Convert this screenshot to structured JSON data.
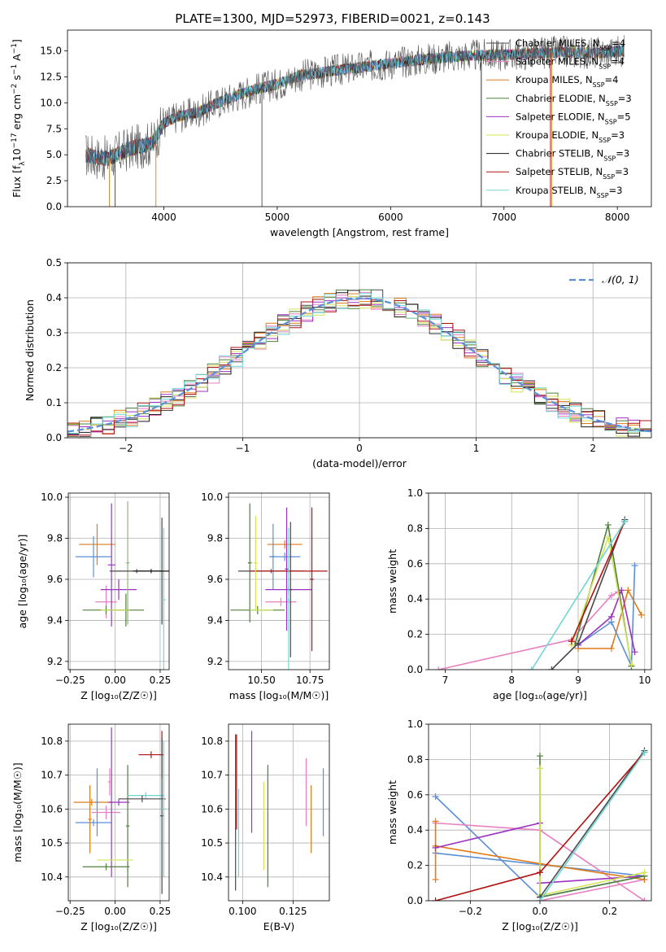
{
  "title": "PLATE=1300, MJD=52973, FIBERID=0021, z=0.143",
  "colors": {
    "series": [
      "#4a4a4a",
      "#e87fc0",
      "#e07b1a",
      "#4f7f3c",
      "#9b32c2",
      "#d4e35a",
      "#1a1a1a",
      "#b01313",
      "#6fd6d6",
      "#5b8fd6",
      "#8fb573",
      "#c3a3e0"
    ]
  },
  "chart_data": [
    {
      "id": "spectrum",
      "type": "line",
      "xlabel": "wavelength [Angstrom, rest frame]",
      "ylabel_parts": [
        "Flux [f",
        "λ",
        "10",
        "−17",
        " erg cm",
        "−2",
        " s",
        "−1",
        " A",
        "−1",
        "]"
      ],
      "xlim": [
        3150,
        8300
      ],
      "ylim": [
        0,
        17
      ],
      "xticks": [
        4000,
        5000,
        6000,
        7000,
        8000
      ],
      "yticks": [
        0.0,
        2.5,
        5.0,
        7.5,
        10.0,
        12.5,
        15.0
      ],
      "ytick_labels": [
        "0.0",
        "2.5",
        "5.0",
        "7.5",
        "10.0",
        "12.5",
        "15.0"
      ],
      "continuum_x": [
        3300,
        3500,
        3700,
        3900,
        4000,
        4100,
        4300,
        4500,
        4800,
        5000,
        5200,
        5500,
        5800,
        6000,
        6300,
        6600,
        6900,
        7200,
        7500,
        7800,
        8050
      ],
      "continuum_y": [
        5.0,
        4.6,
        5.6,
        6.1,
        8.0,
        8.6,
        9.1,
        10.1,
        11.3,
        11.8,
        12.6,
        13.1,
        13.5,
        13.8,
        14.2,
        14.5,
        14.6,
        14.7,
        14.9,
        14.8,
        15.0
      ],
      "legend_entries": [
        {
          "label_main": "Chabrier MILES, N",
          "label_sub": "SSP",
          "label_tail": "=4"
        },
        {
          "label_main": "Salpeter MILES, N",
          "label_sub": "SSP",
          "label_tail": "=4"
        },
        {
          "label_main": "Kroupa MILES, N",
          "label_sub": "SSP",
          "label_tail": "=4"
        },
        {
          "label_main": "Chabrier ELODIE, N",
          "label_sub": "SSP",
          "label_tail": "=3"
        },
        {
          "label_main": "Salpeter ELODIE, N",
          "label_sub": "SSP",
          "label_tail": "=5"
        },
        {
          "label_main": "Kroupa ELODIE, N",
          "label_sub": "SSP",
          "label_tail": "=3"
        },
        {
          "label_main": "Chabrier STELIB, N",
          "label_sub": "SSP",
          "label_tail": "=3"
        },
        {
          "label_main": "Salpeter STELIB, N",
          "label_sub": "SSP",
          "label_tail": "=3"
        },
        {
          "label_main": "Kroupa STELIB, N",
          "label_sub": "SSP",
          "label_tail": "=3"
        }
      ],
      "legend_position": "top-right"
    },
    {
      "id": "residuals",
      "type": "histogram",
      "xlabel": "(data-model)/error",
      "ylabel": "Normed distribution",
      "xlim": [
        -2.5,
        2.5
      ],
      "ylim": [
        0,
        0.5
      ],
      "xticks": [
        -2,
        -1,
        0,
        1,
        2
      ],
      "xtick_labels": [
        "−2",
        "−1",
        "0",
        "1",
        "2"
      ],
      "yticks": [
        0.0,
        0.1,
        0.2,
        0.3,
        0.4,
        0.5
      ],
      "ytick_labels": [
        "0.0",
        "0.1",
        "0.2",
        "0.3",
        "0.4",
        "0.5"
      ],
      "bin_width": 0.1,
      "normal_label": "𝒩(0, 1)",
      "normal_color": "#5b8fd6",
      "grid": true,
      "legend_position": "top-right"
    },
    {
      "id": "age_vs_Z",
      "type": "errorbar",
      "xlabel": "Z [log₁₀(Z/Z☉)]",
      "ylabel": "age  [log₁₀(age/yr)]",
      "xlim": [
        -0.26,
        0.3
      ],
      "ylim": [
        9.16,
        10.02
      ],
      "xticks": [
        -0.25,
        0.0,
        0.25
      ],
      "xtick_labels": [
        "−0.25",
        "0.00",
        "0.25"
      ],
      "yticks": [
        9.2,
        9.4,
        9.6,
        9.8,
        10.0
      ],
      "ytick_labels": [
        "9.2",
        "9.4",
        "9.6",
        "9.8",
        "10.0"
      ],
      "points": [
        {
          "x": -0.1,
          "y": 9.77,
          "xe": 0.1,
          "ye": 0.1,
          "c": 2
        },
        {
          "x": -0.12,
          "y": 9.71,
          "xe": 0.1,
          "ye": 0.1,
          "c": 9
        },
        {
          "x": -0.05,
          "y": 9.49,
          "xe": 0.06,
          "ye": 0.08,
          "c": 1
        },
        {
          "x": -0.02,
          "y": 9.67,
          "xe": 0.02,
          "ye": 0.3,
          "c": 4
        },
        {
          "x": 0.02,
          "y": 9.55,
          "xe": 0.1,
          "ye": 0.05,
          "c": 4
        },
        {
          "x": 0.06,
          "y": 9.45,
          "xe": 0.1,
          "ye": 0.08,
          "c": 3
        },
        {
          "x": -0.05,
          "y": 9.45,
          "xe": 0.13,
          "ye": 0.02,
          "c": 3
        },
        {
          "x": 0.0,
          "y": 9.45,
          "xe": 0.08,
          "ye": 0.01,
          "c": 5
        },
        {
          "x": 0.07,
          "y": 9.68,
          "xe": 0.01,
          "ye": 0.3,
          "c": 10
        },
        {
          "x": 0.12,
          "y": 9.64,
          "xe": 0.15,
          "ye": 0.01,
          "c": 0
        },
        {
          "x": 0.26,
          "y": 9.64,
          "xe": 0.01,
          "ye": 0.26,
          "c": 0
        },
        {
          "x": 0.27,
          "y": 9.5,
          "xe": 0.01,
          "ye": 0.35,
          "c": 8
        },
        {
          "x": 0.2,
          "y": 9.64,
          "xe": 0.1,
          "ye": 0.01,
          "c": 6
        }
      ]
    },
    {
      "id": "age_vs_mass",
      "type": "errorbar",
      "xlabel": "mass [log₁₀(M/M☉)]",
      "ylabel": "",
      "xlim": [
        10.33,
        10.85
      ],
      "ylim": [
        9.16,
        10.02
      ],
      "xticks": [
        10.5,
        10.75
      ],
      "xtick_labels": [
        "10.50",
        "10.75"
      ],
      "yticks": [
        9.2,
        9.4,
        9.6,
        9.8,
        10.0
      ],
      "ytick_labels": [
        "9.2",
        "9.4",
        "9.6",
        "9.8",
        "10.0"
      ],
      "points": [
        {
          "x": 10.62,
          "y": 9.77,
          "xe": 0.09,
          "ye": 0.02,
          "c": 2
        },
        {
          "x": 10.62,
          "y": 9.71,
          "xe": 0.08,
          "ye": 0.02,
          "c": 9
        },
        {
          "x": 10.56,
          "y": 9.71,
          "xe": 0.01,
          "ye": 0.16,
          "c": 9
        },
        {
          "x": 10.6,
          "y": 9.49,
          "xe": 0.08,
          "ye": 0.02,
          "c": 1
        },
        {
          "x": 10.64,
          "y": 9.55,
          "xe": 0.12,
          "ye": 0.02,
          "c": 4
        },
        {
          "x": 10.63,
          "y": 9.65,
          "xe": 0.01,
          "ye": 0.3,
          "c": 4
        },
        {
          "x": 10.48,
          "y": 9.45,
          "xe": 0.14,
          "ye": 0.02,
          "c": 3
        },
        {
          "x": 10.44,
          "y": 9.68,
          "xe": 0.01,
          "ye": 0.29,
          "c": 3
        },
        {
          "x": 10.5,
          "y": 9.45,
          "xe": 0.06,
          "ye": 0.02,
          "c": 5
        },
        {
          "x": 10.65,
          "y": 9.55,
          "xe": 0.01,
          "ye": 0.33,
          "c": 0
        },
        {
          "x": 10.55,
          "y": 9.64,
          "xe": 0.17,
          "ye": 0.01,
          "c": 0
        },
        {
          "x": 10.76,
          "y": 9.6,
          "xe": 0.01,
          "ye": 0.35,
          "c": 7
        },
        {
          "x": 10.64,
          "y": 9.64,
          "xe": 0.2,
          "ye": 0.01,
          "c": 7
        },
        {
          "x": 10.64,
          "y": 9.5,
          "xe": 0.01,
          "ye": 0.35,
          "c": 8
        },
        {
          "x": 10.47,
          "y": 9.68,
          "xe": 0.01,
          "ye": 0.23,
          "c": 5
        }
      ]
    },
    {
      "id": "weight_vs_age",
      "type": "line",
      "xlabel": "age  [log₁₀(age/yr)]",
      "ylabel": "mass weight",
      "xlim": [
        6.75,
        10.1
      ],
      "ylim": [
        0,
        1
      ],
      "xticks": [
        7,
        8,
        9,
        10
      ],
      "xtick_labels": [
        "7",
        "8",
        "9",
        "10"
      ],
      "yticks": [
        0.0,
        0.2,
        0.4,
        0.6,
        0.8,
        1.0
      ],
      "ytick_labels": [
        "0.0",
        "0.2",
        "0.4",
        "0.6",
        "0.8",
        "1.0"
      ],
      "grid": true,
      "series": [
        {
          "c": 1,
          "x": [
            6.9,
            8.9,
            9.5,
            9.6
          ],
          "y": [
            0.0,
            0.17,
            0.42,
            0.44
          ]
        },
        {
          "c": 2,
          "x": [
            9.0,
            9.5,
            9.75,
            9.95
          ],
          "y": [
            0.12,
            0.12,
            0.45,
            0.31
          ]
        },
        {
          "c": 9,
          "x": [
            9.0,
            9.5,
            9.8,
            9.85
          ],
          "y": [
            0.14,
            0.27,
            0.02,
            0.59
          ]
        },
        {
          "c": 4,
          "x": [
            9.0,
            9.5,
            9.65,
            9.85
          ],
          "y": [
            0.14,
            0.3,
            0.45,
            0.1
          ]
        },
        {
          "c": 3,
          "x": [
            8.95,
            9.45,
            9.8
          ],
          "y": [
            0.14,
            0.82,
            0.02
          ]
        },
        {
          "c": 5,
          "x": [
            8.9,
            9.45,
            9.8
          ],
          "y": [
            0.14,
            0.75,
            0.03
          ]
        },
        {
          "c": 0,
          "x": [
            8.6,
            9.0,
            9.7
          ],
          "y": [
            0.0,
            0.15,
            0.85
          ]
        },
        {
          "c": 7,
          "x": [
            8.9,
            9.7
          ],
          "y": [
            0.16,
            0.84
          ]
        },
        {
          "c": 8,
          "x": [
            8.3,
            9.7
          ],
          "y": [
            0.0,
            0.84
          ]
        }
      ]
    },
    {
      "id": "mass_vs_Z",
      "type": "errorbar",
      "xlabel": "Z [log₁₀(Z/Z☉)]",
      "ylabel": "mass [log₁₀(M/M☉)]",
      "xlim": [
        -0.26,
        0.3
      ],
      "ylim": [
        10.33,
        10.85
      ],
      "xticks": [
        -0.25,
        0.0,
        0.25
      ],
      "xtick_labels": [
        "−0.25",
        "0.00",
        "0.25"
      ],
      "yticks": [
        10.4,
        10.5,
        10.6,
        10.7,
        10.8
      ],
      "ytick_labels": [
        "10.4",
        "10.5",
        "10.6",
        "10.7",
        "10.8"
      ],
      "points": [
        {
          "x": -0.13,
          "y": 10.62,
          "xe": 0.1,
          "ye": 0.01,
          "c": 2
        },
        {
          "x": -0.12,
          "y": 10.56,
          "xe": 0.1,
          "ye": 0.01,
          "c": 9
        },
        {
          "x": -0.1,
          "y": 10.62,
          "xe": 0.01,
          "ye": 0.1,
          "c": 9
        },
        {
          "x": -0.14,
          "y": 10.57,
          "xe": 0.01,
          "ye": 0.1,
          "c": 2
        },
        {
          "x": -0.05,
          "y": 10.59,
          "xe": 0.08,
          "ye": 0.02,
          "c": 1
        },
        {
          "x": -0.02,
          "y": 10.62,
          "xe": 0.01,
          "ye": 0.22,
          "c": 4
        },
        {
          "x": 0.02,
          "y": 10.62,
          "xe": 0.06,
          "ye": 0.01,
          "c": 4
        },
        {
          "x": -0.05,
          "y": 10.43,
          "xe": 0.13,
          "ye": 0.01,
          "c": 3
        },
        {
          "x": 0.07,
          "y": 10.55,
          "xe": 0.01,
          "ye": 0.18,
          "c": 3
        },
        {
          "x": 0.0,
          "y": 10.45,
          "xe": 0.1,
          "ye": 0.01,
          "c": 5
        },
        {
          "x": 0.17,
          "y": 10.64,
          "xe": 0.1,
          "ye": 0.01,
          "c": 8
        },
        {
          "x": 0.15,
          "y": 10.63,
          "xe": 0.13,
          "ye": 0.01,
          "c": 0
        },
        {
          "x": 0.2,
          "y": 10.76,
          "xe": 0.07,
          "ye": 0.01,
          "c": 7
        },
        {
          "x": 0.26,
          "y": 10.76,
          "xe": 0.01,
          "ye": 0.07,
          "c": 7
        },
        {
          "x": 0.26,
          "y": 10.58,
          "xe": 0.01,
          "ye": 0.23,
          "c": 0
        },
        {
          "x": 0.27,
          "y": 10.6,
          "xe": 0.01,
          "ye": 0.2,
          "c": 8
        },
        {
          "x": -0.03,
          "y": 10.68,
          "xe": 0.01,
          "ye": 0.04,
          "c": 1
        }
      ]
    },
    {
      "id": "mass_vs_ebv",
      "type": "errorbar",
      "xlabel": "E(B-V)",
      "ylabel": "",
      "xlim": [
        0.093,
        0.143
      ],
      "ylim": [
        10.33,
        10.85
      ],
      "xticks": [
        0.1,
        0.125
      ],
      "xtick_labels": [
        "0.100",
        "0.125"
      ],
      "yticks": [
        10.4,
        10.5,
        10.6,
        10.7,
        10.8
      ],
      "ytick_labels": [
        "10.4",
        "10.5",
        "10.6",
        "10.7",
        "10.8"
      ],
      "points": [
        {
          "x": 0.0965,
          "y": 10.59,
          "xe": 0,
          "ye": 0.23,
          "c": 0
        },
        {
          "x": 0.097,
          "y": 10.68,
          "xe": 0,
          "ye": 0.14,
          "c": 7
        },
        {
          "x": 0.098,
          "y": 10.53,
          "xe": 0,
          "ye": 0.13,
          "c": 8
        },
        {
          "x": 0.1045,
          "y": 10.68,
          "xe": 0,
          "ye": 0.15,
          "c": 4
        },
        {
          "x": 0.1105,
          "y": 10.55,
          "xe": 0,
          "ye": 0.13,
          "c": 5
        },
        {
          "x": 0.1125,
          "y": 10.55,
          "xe": 0,
          "ye": 0.18,
          "c": 3
        },
        {
          "x": 0.1315,
          "y": 10.65,
          "xe": 0,
          "ye": 0.1,
          "c": 1
        },
        {
          "x": 0.134,
          "y": 10.57,
          "xe": 0,
          "ye": 0.1,
          "c": 2
        },
        {
          "x": 0.14,
          "y": 10.62,
          "xe": 0,
          "ye": 0.1,
          "c": 9
        }
      ]
    },
    {
      "id": "weight_vs_Z",
      "type": "line",
      "xlabel": "Z [log₁₀(Z/Z☉)]",
      "ylabel": "mass weight",
      "xlim": [
        -0.32,
        0.32
      ],
      "ylim": [
        0,
        1
      ],
      "xticks": [
        -0.2,
        0.0,
        0.2
      ],
      "xtick_labels": [
        "−0.2",
        "0.0",
        "0.2"
      ],
      "yticks": [
        0.0,
        0.2,
        0.4,
        0.6,
        0.8,
        1.0
      ],
      "ytick_labels": [
        "0.0",
        "0.2",
        "0.4",
        "0.6",
        "0.8",
        "1.0"
      ],
      "grid": true,
      "series": [
        {
          "c": 9,
          "x": [
            -0.3,
            0.0,
            0.3,
            -0.3
          ],
          "y": [
            0.59,
            0.02,
            0.14,
            0.27
          ]
        },
        {
          "c": 1,
          "x": [
            -0.3,
            0.0,
            0.3
          ],
          "y": [
            0.44,
            0.4,
            0.0
          ]
        },
        {
          "c": 1,
          "x": [
            0.0,
            0.3
          ],
          "y": [
            0.0,
            0.12
          ]
        },
        {
          "c": 2,
          "x": [
            -0.3,
            0.0,
            0.3
          ],
          "y": [
            0.31,
            0.21,
            0.12
          ]
        },
        {
          "c": 2,
          "x": [
            -0.3,
            -0.3
          ],
          "y": [
            0.12,
            0.45
          ]
        },
        {
          "c": 4,
          "x": [
            -0.3,
            0.0
          ],
          "y": [
            0.3,
            0.44
          ]
        },
        {
          "c": 4,
          "x": [
            0.0,
            0.3
          ],
          "y": [
            0.1,
            0.14
          ]
        },
        {
          "c": 3,
          "x": [
            0.0,
            0.0,
            0.3
          ],
          "y": [
            0.82,
            0.02,
            0.14
          ]
        },
        {
          "c": 5,
          "x": [
            0.0,
            0.0,
            0.3
          ],
          "y": [
            0.75,
            0.03,
            0.16
          ]
        },
        {
          "c": 0,
          "x": [
            0.0,
            0.3
          ],
          "y": [
            0.02,
            0.85
          ]
        },
        {
          "c": 7,
          "x": [
            -0.3,
            0.0,
            0.3
          ],
          "y": [
            0.0,
            0.16,
            0.84
          ]
        },
        {
          "c": 8,
          "x": [
            0.0,
            0.3
          ],
          "y": [
            0.0,
            0.84
          ]
        }
      ]
    }
  ]
}
